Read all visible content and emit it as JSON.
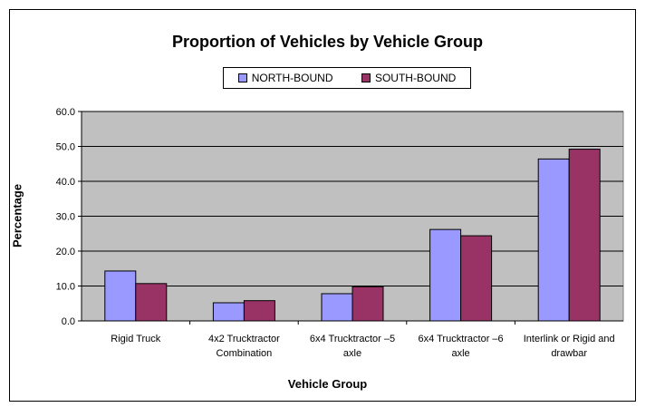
{
  "chart_data": {
    "type": "bar",
    "title": "Proportion of Vehicles by Vehicle Group",
    "xlabel": "Vehicle Group",
    "ylabel": "Percentage",
    "ylim": [
      0,
      60
    ],
    "yticks": [
      "0.0",
      "10.0",
      "20.0",
      "30.0",
      "40.0",
      "50.0",
      "60.0"
    ],
    "grid": true,
    "legend_position": "top-center",
    "categories": [
      [
        "Rigid Truck"
      ],
      [
        "4x2 Trucktractor",
        "Combination"
      ],
      [
        "6x4 Trucktractor –5",
        "axle"
      ],
      [
        "6x4 Trucktractor –6",
        "axle"
      ],
      [
        "Interlink or Rigid and",
        "drawbar"
      ]
    ],
    "series": [
      {
        "name": "NORTH-BOUND",
        "color": "#9999FF",
        "values": [
          14.3,
          5.2,
          7.8,
          26.2,
          46.4
        ]
      },
      {
        "name": "SOUTH-BOUND",
        "color": "#993366",
        "values": [
          10.7,
          5.8,
          9.8,
          24.4,
          49.2
        ]
      }
    ],
    "plot_background": "#C0C0C0"
  }
}
